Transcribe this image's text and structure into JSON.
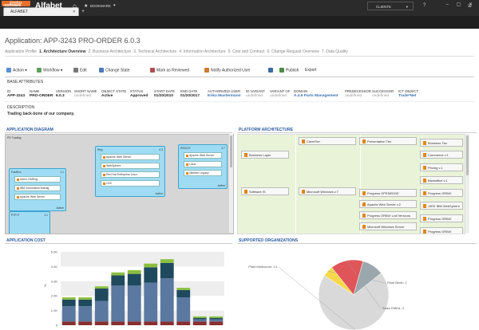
{
  "browser": {
    "menu_button": "Firefox",
    "tab_title": "ALFABET",
    "new_tab": "+",
    "window_controls": "– ▢ ✕"
  },
  "app": {
    "brand": "software",
    "name": "Alfabet",
    "bookmark": "BOOKMARK",
    "user": "CLIENTE",
    "help": "?"
  },
  "page": {
    "title": "Application: APP-3243 PRO-ORDER 6.0.3",
    "tabs": [
      "Application Profile",
      "1. Architecture Overview",
      "2. Business Architecture",
      "3. Technical Architecture",
      "4. Information Architecture",
      "5. Cost and Contract",
      "6. Change Request Overview",
      "7. Data Quality"
    ],
    "active_tab": 1
  },
  "toolbar": {
    "action": "Action",
    "workflow": "Workflow",
    "edit": "Edit",
    "change_state": "Change State",
    "mark_reviewed": "Mark as Reviewed",
    "notify": "Notify Authorized User",
    "publish": "Publish",
    "export": "Export"
  },
  "base_attributes": {
    "section": "BASE ATTRIBUTES",
    "headers": [
      "ID",
      "NAME",
      "VERSION",
      "SHORT NAME",
      "OBJECT STATE",
      "STATUS",
      "START DATE",
      "END DATE",
      "AUTHORIZED USER",
      "ID VARIANT",
      "VARIANT OF",
      "DOMAIN",
      "PREDECESSOR",
      "SUCCESSOR",
      "ICT OBJECT"
    ],
    "values": [
      "APP-3243",
      "PRO-ORDER",
      "6.0.3",
      "undefined",
      "Active",
      "Approved",
      "01/20/2010",
      "01/20/2017",
      "Erika Mustermann",
      "undefined",
      "undefined",
      "A.4.6 Parts Management",
      "undefined",
      "undefined",
      "Trade*Net"
    ],
    "description_label": "DESCRIPTION",
    "description": "Trading back-bone of our company."
  },
  "diagram": {
    "title": "APPLICATION DIAGRAM",
    "root": "PD Trading",
    "nodes": [
      {
        "name": "FastSvc",
        "num": "1.1",
        "items": [
          "Aduro DMEng",
          "IBM Information Manag",
          "Apache Web Server"
        ],
        "state": "Active"
      },
      {
        "name": "Reg",
        "num": "4.3",
        "items": [
          "Apache Web Server",
          "WebSphere",
          "Red Hat Enterprise Linux",
          "LDS"
        ],
        "state": "Active"
      },
      {
        "name": "REDCIT",
        "num": "3.7",
        "items": [
          "Apache Web Server",
          "Linux",
          "sNether Legacy"
        ],
        "state": "Active"
      },
      {
        "name": "PTP-P",
        "num": "1.1",
        "items": [],
        "state": ""
      }
    ]
  },
  "platform": {
    "title": "PLATFORM ARCHITECTURE",
    "boxes": [
      "ClientTier",
      "Presentation Tier",
      "Business Tier",
      "Business Layer",
      "Commerce v.1",
      "Pricing v.1",
      "Backoffice v.1",
      "Software IS",
      "Microsoft Windows v.7",
      "Progress OPENEDGE",
      "Progress ORBIX",
      "Apache Web Server v.2",
      "J2EE IBM WebSphere",
      "Progress ORBIX v.all Versions",
      "Progress ORBIX",
      "Microsoft Windows Server",
      "Progress ORBIX"
    ]
  },
  "cost": {
    "title": "APPLICATION COST",
    "y_unit": "%"
  },
  "chart_data": [
    {
      "type": "bar",
      "title": "APPLICATION COST",
      "xlabel": "",
      "ylabel": "%",
      "categories": [
        "",
        "",
        "",
        "",
        "",
        "",
        "",
        "",
        "",
        ""
      ],
      "ylim": [
        0,
        5000
      ],
      "yticks": [
        "0",
        "1.0K",
        "2.0K",
        "3.0K",
        "4.0K",
        "5.0K"
      ],
      "series": [
        {
          "values": [
            250,
            250,
            250,
            250,
            250,
            250,
            250,
            250,
            250,
            250
          ],
          "color": "#8a2f2f"
        },
        {
          "values": [
            1050,
            1050,
            1400,
            2450,
            2450,
            2650,
            2950,
            1650,
            150,
            150
          ],
          "color": "#5a78a0"
        },
        {
          "values": [
            450,
            450,
            850,
            700,
            800,
            1050,
            1050,
            500,
            100,
            100
          ],
          "color": "#1f4a5e"
        },
        {
          "values": [
            150,
            150,
            150,
            200,
            250,
            250,
            250,
            150,
            100,
            100
          ],
          "color": "#8bbf3e"
        }
      ]
    },
    {
      "type": "pie",
      "title": "SUPPORTED ORGANIZATIONS",
      "labels": [
        "Plant Melbourne, 14",
        "Plant Berlin, 1",
        "Sales EMEA, 3",
        ""
      ],
      "values": [
        14,
        1,
        3,
        2
      ],
      "colors": [
        "#d9d9d9",
        "#f5d94a",
        "#e0555a",
        "#9aa7ad"
      ]
    }
  ]
}
